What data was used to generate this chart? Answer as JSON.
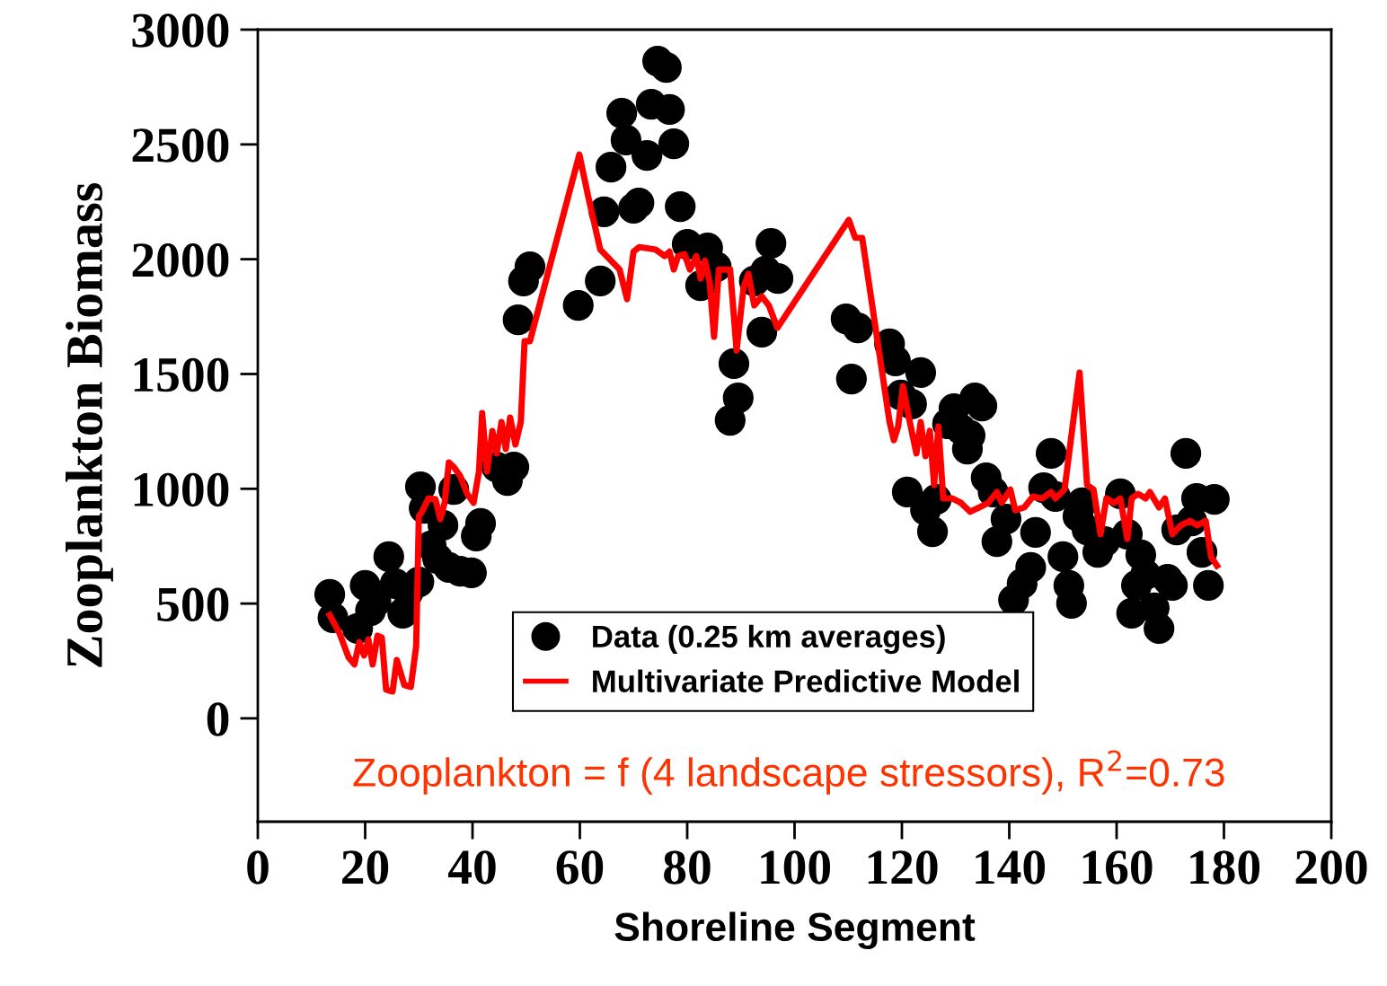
{
  "chart_data": {
    "type": "scatter",
    "xlabel": "Shoreline Segment",
    "ylabel": "Zooplankton Biomass",
    "xlim": [
      0,
      200
    ],
    "xticks": [
      0,
      20,
      40,
      60,
      80,
      100,
      120,
      140,
      160,
      180,
      200
    ],
    "ylim": [
      -450,
      3000
    ],
    "yticks": [
      0,
      500,
      1000,
      1500,
      2000,
      2500,
      3000
    ],
    "grid": false,
    "legend": "bottom",
    "annotations": [
      "Zooplankton = f (4 landscape stressors), R$^{2}$=0.73"
    ],
    "series": [
      {
        "name": "Data (0.25 km averages)",
        "marker": "circle",
        "color": "#000000",
        "x": [
          13.4,
          14,
          18.6,
          20,
          21,
          22,
          24.4,
          25.6,
          27,
          28,
          30,
          30.3,
          31,
          32.3,
          33.5,
          34.5,
          35.6,
          36.5,
          37.7,
          39.8,
          40.7,
          41.5,
          42.8,
          44.5,
          46.5,
          47.7,
          48.5,
          49.5,
          50.7,
          59.7,
          63.8,
          64.5,
          65.8,
          67.8,
          68.6,
          70,
          71,
          72.5,
          73.3,
          74.5,
          76.1,
          76.7,
          77.5,
          78.7,
          80,
          82.5,
          83.8,
          85.4,
          88,
          88.7,
          89.5,
          92.5,
          93.9,
          94.6,
          95.6,
          96.9,
          109.6,
          110.6,
          111.8,
          117.7,
          118.8,
          119.8,
          121,
          121.8,
          123.5,
          124.4,
          125.7,
          126.4,
          128.5,
          129.7,
          131,
          132.2,
          132.7,
          133.6,
          134.9,
          135.7,
          137,
          137.7,
          139.4,
          140.8,
          142.4,
          144,
          144.9,
          146.4,
          147.8,
          148.6,
          150,
          151.1,
          151.6,
          152.8,
          153.6,
          154.5,
          156.5,
          157.8,
          159.5,
          160.7,
          162,
          162.8,
          163.7,
          164.5,
          165.4,
          167,
          167.9,
          169.5,
          170.4,
          171.2,
          172.9,
          174,
          174.9,
          175.9,
          177.1,
          178.2
        ],
        "values": [
          540,
          438,
          391,
          579,
          469,
          508,
          704,
          587,
          458,
          548,
          594,
          1009,
          915,
          751,
          696,
          841,
          657,
          997,
          641,
          634,
          794,
          849,
          null,
          1095,
          1036,
          1095,
          1736,
          1905,
          1967,
          1799,
          1905,
          2206,
          2401,
          2636,
          2519,
          2222,
          2245,
          2452,
          2675,
          2863,
          2835,
          2652,
          2503,
          2229,
          2065,
          1885,
          2049,
          1967,
          1298,
          1545,
          1396,
          1905,
          1682,
          1948,
          2069,
          1916,
          1740,
          1478,
          1701,
          1631,
          1557,
          1408,
          986,
          1369,
          1506,
          907,
          813,
          954,
          1283,
          1349,
          1259,
          1173,
          1232,
          1396,
          1361,
          1048,
          986,
          770,
          868,
          516,
          587,
          657,
          810,
          1005,
          1154,
          966,
          704,
          579,
          501,
          880,
          939,
          821,
          723,
          770,
          null,
          978,
          802,
          458,
          579,
          712,
          626,
          481,
          391,
          606,
          579,
          821,
          1154,
          860,
          958,
          723,
          579,
          954
        ]
      },
      {
        "name": "Multivariate Predictive Model",
        "type": "line",
        "marker": "none",
        "line_style": "solid",
        "color": "#ff0000",
        "x": [
          13.4,
          15.2,
          16.9,
          18,
          18.9,
          19.8,
          20.6,
          21.4,
          22.3,
          23.1,
          23.9,
          25.1,
          25.9,
          27.3,
          28.5,
          29.5,
          30,
          30.6,
          31.8,
          33.1,
          34,
          34.8,
          35.6,
          36.5,
          37.7,
          39,
          40.2,
          41.2,
          41.8,
          42.7,
          43.7,
          44.5,
          45.4,
          46.2,
          47,
          48,
          49,
          49.7,
          50.7,
          59.9,
          61.6,
          63.8,
          67.4,
          68.8,
          70,
          71.1,
          74.1,
          75.8,
          76.7,
          77.5,
          78.3,
          79.5,
          80.5,
          81.7,
          82.5,
          83.3,
          84.2,
          85,
          85.9,
          87.2,
          88,
          89.2,
          90.5,
          91.4,
          92.5,
          93.9,
          95.2,
          96.8,
          110.1,
          111.3,
          112.6,
          117.7,
          118.5,
          119.3,
          120.2,
          121.3,
          122.7,
          123.5,
          124.4,
          125.2,
          126,
          126.8,
          127.7,
          129.4,
          131,
          132.7,
          134.4,
          136.1,
          137.7,
          138.6,
          140.2,
          141.1,
          142.8,
          144.4,
          146.1,
          147.8,
          148.6,
          150.3,
          151.9,
          153.1,
          154.5,
          155.7,
          157,
          158.1,
          159.5,
          160.7,
          162,
          162.8,
          164,
          165.4,
          166.2,
          167.9,
          169,
          170.4,
          172,
          173.7,
          175,
          176.6,
          177.6,
          178.7
        ],
        "values": [
          450,
          372,
          266,
          235,
          332,
          274,
          344,
          235,
          360,
          352,
          125,
          117,
          254,
          145,
          137,
          313,
          880,
          900,
          958,
          954,
          868,
          939,
          1115,
          1095,
          1056,
          978,
          939,
          1075,
          1330,
          1075,
          1252,
          1154,
          1291,
          1173,
          1310,
          1193,
          1291,
          1643,
          1643,
          2456,
          2268,
          2042,
          1955,
          1826,
          2033,
          2053,
          2042,
          2014,
          2033,
          1955,
          2014,
          2022,
          1955,
          2014,
          1916,
          1994,
          1897,
          1662,
          1955,
          1955,
          1955,
          1603,
          1877,
          1936,
          1799,
          1838,
          1799,
          1701,
          2171,
          2093,
          2093,
          1291,
          1212,
          1271,
          1447,
          1310,
          1154,
          1291,
          1142,
          1252,
          1017,
          1271,
          958,
          958,
          939,
          900,
          919,
          939,
          986,
          939,
          997,
          907,
          919,
          966,
          958,
          986,
          958,
          997,
          1291,
          1506,
          1017,
          997,
          802,
          958,
          939,
          958,
          782,
          958,
          978,
          958,
          986,
          919,
          958,
          802,
          841,
          860,
          841,
          860,
          704,
          665
        ]
      }
    ]
  }
}
